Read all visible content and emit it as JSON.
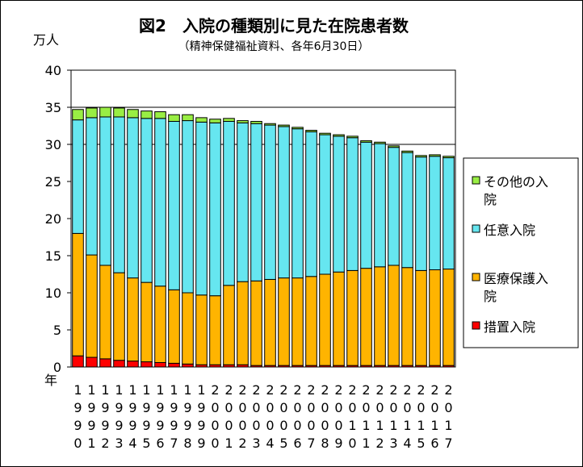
{
  "chart_data": {
    "type": "bar",
    "stacked": true,
    "title": "図2　入院の種類別に見た在院患者数",
    "subtitle": "（精神保健福祉資料、各年6月30日）",
    "ylabel": "万人",
    "xlabel": "年",
    "ylim": [
      0,
      40
    ],
    "yticks": [
      0,
      5,
      10,
      15,
      20,
      25,
      30,
      35,
      40
    ],
    "gridlines": [
      30,
      35
    ],
    "legend_position": "right",
    "categories": [
      "1990",
      "1991",
      "1992",
      "1993",
      "1994",
      "1995",
      "1996",
      "1997",
      "1998",
      "1999",
      "2000",
      "2001",
      "2002",
      "2003",
      "2004",
      "2005",
      "2006",
      "2007",
      "2008",
      "2009",
      "2010",
      "2011",
      "2012",
      "2013",
      "2014",
      "2015",
      "2016",
      "2017"
    ],
    "series": [
      {
        "name": "措置入院",
        "color": "#ff0000",
        "values": [
          1.5,
          1.3,
          1.1,
          0.9,
          0.8,
          0.7,
          0.6,
          0.5,
          0.4,
          0.3,
          0.3,
          0.3,
          0.3,
          0.2,
          0.2,
          0.2,
          0.2,
          0.2,
          0.2,
          0.2,
          0.2,
          0.2,
          0.2,
          0.2,
          0.2,
          0.2,
          0.2,
          0.2
        ]
      },
      {
        "name": "医療保護入院",
        "color": "#ffb400",
        "values": [
          16.5,
          13.8,
          12.6,
          11.8,
          11.2,
          10.7,
          10.3,
          9.9,
          9.6,
          9.4,
          9.3,
          10.7,
          11.2,
          11.4,
          11.6,
          11.8,
          11.8,
          12.0,
          12.3,
          12.6,
          12.8,
          13.1,
          13.3,
          13.5,
          13.2,
          12.8,
          12.9,
          13.0
        ]
      },
      {
        "name": "任意入院",
        "color": "#66e6f0",
        "values": [
          15.3,
          18.5,
          20.0,
          21.0,
          21.6,
          22.1,
          22.6,
          22.7,
          23.2,
          23.3,
          23.3,
          22.1,
          21.4,
          21.2,
          20.8,
          20.4,
          20.1,
          19.5,
          18.8,
          18.3,
          17.9,
          17.0,
          16.6,
          15.9,
          15.5,
          15.3,
          15.3,
          15.0
        ]
      },
      {
        "name": "その他の入院",
        "color": "#99ee44",
        "values": [
          1.4,
          1.3,
          1.3,
          1.2,
          1.1,
          1.0,
          0.9,
          0.9,
          0.8,
          0.6,
          0.5,
          0.4,
          0.3,
          0.3,
          0.2,
          0.2,
          0.2,
          0.2,
          0.2,
          0.2,
          0.2,
          0.2,
          0.2,
          0.2,
          0.2,
          0.2,
          0.2,
          0.2
        ]
      }
    ],
    "legend_order": [
      3,
      2,
      1,
      0
    ],
    "plot_bg": "#ffffff"
  }
}
